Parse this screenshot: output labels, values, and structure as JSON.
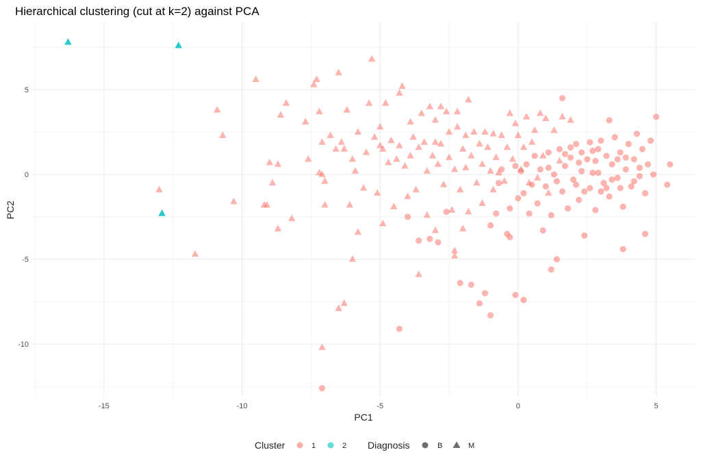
{
  "chart_data": {
    "type": "scatter",
    "title": "Hierarchical clustering (cut at k=2) against PCA",
    "xlabel": "PC1",
    "ylabel": "PC2",
    "xlim": [
      -17.6,
      6.4
    ],
    "ylim": [
      -13.1,
      9.0
    ],
    "x_ticks": [
      -15,
      -10,
      -5,
      0,
      5
    ],
    "x_tick_labels": [
      "-15",
      "-10",
      "-5",
      "0",
      "5"
    ],
    "y_ticks": [
      -10,
      -5,
      0,
      5
    ],
    "y_tick_labels": [
      "-10",
      "-5",
      "0",
      "5"
    ],
    "grid": true,
    "legend": {
      "placement": "bottom",
      "color_title": "Cluster",
      "shape_title": "Diagnosis",
      "clusters": [
        {
          "label": "1",
          "color": "#F8766D"
        },
        {
          "label": "2",
          "color": "#00BFC4"
        }
      ],
      "shapes": [
        {
          "label": "B",
          "shape": "circle"
        },
        {
          "label": "M",
          "shape": "triangle"
        }
      ]
    },
    "series": [
      {
        "name": "Cluster 2, M",
        "cluster": "2",
        "diagnosis": "M",
        "points": [
          [
            -16.3,
            7.8
          ],
          [
            -12.3,
            7.6
          ],
          [
            -12.9,
            -2.3
          ]
        ]
      },
      {
        "name": "Cluster 1, M",
        "cluster": "1",
        "diagnosis": "M",
        "points": [
          [
            -13.0,
            -0.9
          ],
          [
            -11.7,
            -4.7
          ],
          [
            -10.9,
            3.8
          ],
          [
            -10.7,
            2.3
          ],
          [
            -10.3,
            -1.6
          ],
          [
            -9.5,
            5.6
          ],
          [
            -9.2,
            -1.8
          ],
          [
            -9.1,
            -1.8
          ],
          [
            -9.0,
            0.7
          ],
          [
            -8.9,
            -0.5
          ],
          [
            -8.7,
            0.6
          ],
          [
            -8.7,
            -3.2
          ],
          [
            -8.6,
            3.5
          ],
          [
            -8.4,
            4.2
          ],
          [
            -8.2,
            -2.6
          ],
          [
            -7.7,
            3.1
          ],
          [
            -7.6,
            0.9
          ],
          [
            -7.4,
            5.3
          ],
          [
            -7.3,
            5.6
          ],
          [
            -7.2,
            3.7
          ],
          [
            -7.2,
            0.1
          ],
          [
            -7.1,
            0.0
          ],
          [
            -7.1,
            1.9
          ],
          [
            -7.0,
            -0.4
          ],
          [
            -7.0,
            -1.8
          ],
          [
            -7.1,
            -10.2
          ],
          [
            -6.8,
            2.3
          ],
          [
            -6.6,
            1.5
          ],
          [
            -6.5,
            6.0
          ],
          [
            -6.4,
            1.9
          ],
          [
            -6.3,
            1.5
          ],
          [
            -6.2,
            3.8
          ],
          [
            -6.1,
            -1.8
          ],
          [
            -6.0,
            0.9
          ],
          [
            -6.0,
            -5.0
          ],
          [
            -5.9,
            0.2
          ],
          [
            -5.8,
            2.5
          ],
          [
            -5.8,
            -3.4
          ],
          [
            -5.6,
            -0.8
          ],
          [
            -5.5,
            1.3
          ],
          [
            -5.4,
            4.2
          ],
          [
            -5.3,
            6.8
          ],
          [
            -5.2,
            2.2
          ],
          [
            -5.1,
            -1.1
          ],
          [
            -5.0,
            1.7
          ],
          [
            -5.0,
            2.8
          ],
          [
            -4.9,
            1.5
          ],
          [
            -4.9,
            -2.9
          ],
          [
            -4.8,
            4.2
          ],
          [
            -4.7,
            0.7
          ],
          [
            -4.6,
            2.0
          ],
          [
            -4.5,
            -1.9
          ],
          [
            -4.4,
            0.9
          ],
          [
            -4.3,
            1.7
          ],
          [
            -4.3,
            4.8
          ],
          [
            -4.2,
            5.2
          ],
          [
            -4.1,
            0.5
          ],
          [
            -4.0,
            -1.3
          ],
          [
            -3.9,
            1.1
          ],
          [
            -3.9,
            3.1
          ],
          [
            -3.8,
            2.2
          ],
          [
            -3.7,
            -0.9
          ],
          [
            -3.6,
            1.6
          ],
          [
            -3.6,
            -5.9
          ],
          [
            -3.5,
            3.6
          ],
          [
            -3.4,
            1.9
          ],
          [
            -3.3,
            0.2
          ],
          [
            -3.3,
            -2.4
          ],
          [
            -3.2,
            4.0
          ],
          [
            -3.1,
            1.1
          ],
          [
            -3.0,
            1.9
          ],
          [
            -3.0,
            3.2
          ],
          [
            -3.0,
            -3.3
          ],
          [
            -2.9,
            0.6
          ],
          [
            -2.8,
            1.8
          ],
          [
            -2.8,
            4.0
          ],
          [
            -2.7,
            -0.6
          ],
          [
            -2.6,
            3.7
          ],
          [
            -2.5,
            1.0
          ],
          [
            -2.5,
            2.5
          ],
          [
            -2.4,
            -2.1
          ],
          [
            -2.3,
            0.3
          ],
          [
            -2.3,
            -4.5
          ],
          [
            -2.2,
            2.8
          ],
          [
            -2.2,
            3.7
          ],
          [
            -2.1,
            -0.9
          ],
          [
            -2.0,
            1.5
          ],
          [
            -1.9,
            0.4
          ],
          [
            -1.9,
            2.3
          ],
          [
            -1.8,
            4.4
          ],
          [
            -1.8,
            -2.2
          ],
          [
            -1.7,
            1.1
          ],
          [
            -1.6,
            2.5
          ],
          [
            -1.5,
            -0.5
          ],
          [
            -1.4,
            1.8
          ],
          [
            -1.3,
            -1.7
          ],
          [
            -1.3,
            0.6
          ],
          [
            -1.2,
            2.5
          ],
          [
            -1.1,
            1.6
          ],
          [
            -1.0,
            0.2
          ],
          [
            -0.9,
            -0.9
          ],
          [
            -0.9,
            2.4
          ],
          [
            -0.8,
            1.0
          ],
          [
            -0.7,
            0.1
          ],
          [
            -0.6,
            2.3
          ],
          [
            -0.5,
            -0.4
          ],
          [
            -0.4,
            1.6
          ],
          [
            -0.3,
            3.6
          ],
          [
            -0.2,
            0.9
          ],
          [
            -0.1,
            3.0
          ],
          [
            0.0,
            2.3
          ],
          [
            0.1,
            0.3
          ],
          [
            0.2,
            1.6
          ],
          [
            0.3,
            3.4
          ],
          [
            0.4,
            -0.5
          ],
          [
            0.5,
            1.9
          ],
          [
            0.6,
            2.6
          ],
          [
            0.7,
            -0.2
          ],
          [
            0.8,
            3.6
          ],
          [
            0.9,
            1.1
          ],
          [
            1.0,
            3.3
          ],
          [
            1.1,
            -1.1
          ],
          [
            1.3,
            2.6
          ],
          [
            1.5,
            0.8
          ],
          [
            1.6,
            3.4
          ],
          [
            1.9,
            3.2
          ],
          [
            -6.5,
            -7.9
          ],
          [
            -6.3,
            -7.6
          ],
          [
            -2.3,
            -4.8
          ],
          [
            -2.0,
            -3.2
          ]
        ]
      },
      {
        "name": "Cluster 1, B",
        "cluster": "1",
        "diagnosis": "B",
        "points": [
          [
            -7.1,
            -12.6
          ],
          [
            -4.3,
            -9.1
          ],
          [
            -3.6,
            -3.9
          ],
          [
            -3.2,
            -3.8
          ],
          [
            -2.9,
            -4.0
          ],
          [
            -2.1,
            -6.4
          ],
          [
            -1.7,
            -6.5
          ],
          [
            -1.4,
            -7.6
          ],
          [
            -1.2,
            -7.0
          ],
          [
            -1.0,
            -8.3
          ],
          [
            -1.0,
            -3.0
          ],
          [
            -0.8,
            -2.3
          ],
          [
            -0.7,
            -0.5
          ],
          [
            -0.6,
            0.3
          ],
          [
            -0.4,
            -3.5
          ],
          [
            -0.3,
            -3.7
          ],
          [
            -0.1,
            -7.1
          ],
          [
            0.2,
            -7.4
          ],
          [
            -0.3,
            -2.0
          ],
          [
            -0.1,
            0.5
          ],
          [
            0.0,
            -1.4
          ],
          [
            0.1,
            0.2
          ],
          [
            0.2,
            -1.1
          ],
          [
            0.3,
            0.6
          ],
          [
            0.4,
            -2.3
          ],
          [
            0.5,
            -0.6
          ],
          [
            0.6,
            1.1
          ],
          [
            0.7,
            -1.7
          ],
          [
            0.8,
            0.3
          ],
          [
            0.9,
            -3.3
          ],
          [
            1.0,
            -0.7
          ],
          [
            1.1,
            1.3
          ],
          [
            1.2,
            -2.4
          ],
          [
            1.3,
            0.0
          ],
          [
            1.4,
            -5.0
          ],
          [
            1.5,
            1.5
          ],
          [
            1.6,
            -1.0
          ],
          [
            1.7,
            0.5
          ],
          [
            1.8,
            -2.0
          ],
          [
            1.9,
            1.0
          ],
          [
            2.0,
            -0.3
          ],
          [
            2.1,
            1.8
          ],
          [
            2.2,
            -1.5
          ],
          [
            2.3,
            0.2
          ],
          [
            2.4,
            -3.6
          ],
          [
            2.5,
            0.9
          ],
          [
            2.6,
            -0.8
          ],
          [
            2.7,
            1.4
          ],
          [
            2.8,
            -2.1
          ],
          [
            2.9,
            0.1
          ],
          [
            3.0,
            2.0
          ],
          [
            3.1,
            -0.5
          ],
          [
            3.2,
            1.1
          ],
          [
            3.3,
            -1.3
          ],
          [
            3.4,
            0.6
          ],
          [
            3.5,
            2.2
          ],
          [
            3.6,
            -0.2
          ],
          [
            3.7,
            1.3
          ],
          [
            3.8,
            -1.9
          ],
          [
            3.9,
            0.3
          ],
          [
            4.0,
            1.8
          ],
          [
            4.1,
            -0.7
          ],
          [
            4.2,
            0.9
          ],
          [
            4.3,
            2.4
          ],
          [
            4.4,
            -0.1
          ],
          [
            4.5,
            1.5
          ],
          [
            4.6,
            -1.1
          ],
          [
            4.7,
            0.6
          ],
          [
            4.8,
            2.0
          ],
          [
            4.9,
            0.0
          ],
          [
            5.0,
            3.4
          ],
          [
            5.4,
            -0.6
          ],
          [
            5.5,
            0.6
          ],
          [
            1.6,
            4.5
          ],
          [
            3.3,
            3.2
          ],
          [
            3.8,
            -4.4
          ],
          [
            4.6,
            -3.5
          ],
          [
            1.2,
            -5.6
          ],
          [
            -2.6,
            -2.2
          ],
          [
            -4.0,
            -2.5
          ],
          [
            2.2,
            0.7
          ],
          [
            2.7,
            0.1
          ],
          [
            3.2,
            -0.8
          ],
          [
            1.9,
            1.6
          ],
          [
            2.4,
            -1.0
          ],
          [
            3.6,
            0.9
          ],
          [
            2.9,
            1.5
          ],
          [
            1.4,
            -0.4
          ],
          [
            3.9,
            1.0
          ],
          [
            2.1,
            -0.6
          ],
          [
            2.6,
            1.9
          ],
          [
            3.4,
            -0.3
          ],
          [
            1.7,
            1.2
          ],
          [
            4.2,
            -0.4
          ],
          [
            2.3,
            1.3
          ],
          [
            3.0,
            -1.0
          ],
          [
            1.1,
            0.4
          ],
          [
            3.7,
            -0.8
          ],
          [
            2.8,
            0.8
          ],
          [
            4.4,
            0.4
          ]
        ]
      }
    ]
  }
}
